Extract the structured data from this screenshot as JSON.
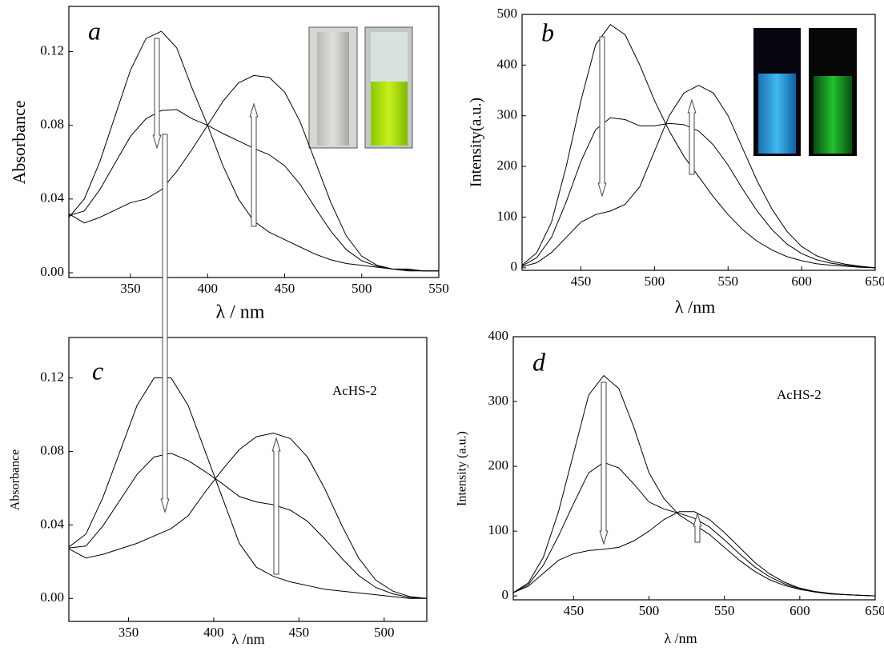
{
  "chart_data": [
    {
      "type": "line",
      "label": "a",
      "xlabel": "λ / nm",
      "ylabel": "Absorbance",
      "x": [
        310,
        320,
        330,
        340,
        350,
        360,
        370,
        380,
        390,
        400,
        410,
        420,
        430,
        440,
        450,
        460,
        470,
        480,
        490,
        500,
        510,
        520,
        530,
        540,
        550
      ],
      "series": [
        {
          "color": "#000000",
          "values": [
            0.03,
            0.04,
            0.06,
            0.085,
            0.11,
            0.127,
            0.131,
            0.122,
            0.1,
            0.08,
            0.058,
            0.04,
            0.028,
            0.022,
            0.018,
            0.014,
            0.01,
            0.007,
            0.005,
            0.004,
            0.003,
            0.002,
            0.002,
            0.001,
            0.001
          ]
        },
        {
          "color": "#000000",
          "values": [
            0.031,
            0.0335,
            0.045,
            0.0595,
            0.074,
            0.0835,
            0.088,
            0.0885,
            0.0835,
            0.08,
            0.0755,
            0.0715,
            0.0675,
            0.064,
            0.058,
            0.048,
            0.035,
            0.0225,
            0.0125,
            0.0065,
            0.0035,
            0.002,
            0.0015,
            0.001,
            0.001
          ]
        },
        {
          "color": "#000000",
          "values": [
            0.032,
            0.027,
            0.03,
            0.034,
            0.038,
            0.04,
            0.045,
            0.055,
            0.067,
            0.08,
            0.093,
            0.103,
            0.107,
            0.106,
            0.098,
            0.082,
            0.06,
            0.038,
            0.02,
            0.009,
            0.004,
            0.002,
            0.001,
            0.001,
            0.001
          ]
        }
      ],
      "xlim": [
        310,
        550
      ],
      "ylim": [
        -0.0026,
        0.1445
      ],
      "xticks": [
        350,
        400,
        450,
        500,
        550
      ],
      "yticks": [
        {
          "value": 0,
          "label": "0.00"
        },
        {
          "value": 0.04,
          "label": "0.04"
        },
        {
          "value": 0.08,
          "label": "0.08"
        },
        {
          "value": 0.12,
          "label": "0.12"
        }
      ]
    },
    {
      "type": "line",
      "label": "b",
      "xlabel": "λ /nm",
      "ylabel": "Intensity(a.u.)",
      "x": [
        410,
        420,
        430,
        440,
        450,
        460,
        470,
        480,
        490,
        500,
        510,
        520,
        530,
        540,
        550,
        560,
        570,
        580,
        590,
        600,
        610,
        620,
        630,
        640,
        650
      ],
      "series": [
        {
          "color": "#000000",
          "values": [
            5,
            30,
            90,
            200,
            330,
            440,
            480,
            460,
            400,
            330,
            270,
            220,
            180,
            140,
            105,
            75,
            52,
            35,
            22,
            14,
            8,
            5,
            3,
            1,
            0
          ]
        },
        {
          "color": "#000000",
          "values": [
            3.5,
            20,
            60,
            130,
            210,
            272.5,
            296,
            292.5,
            280,
            280,
            285,
            282.5,
            270,
            242.5,
            202.5,
            155,
            111,
            75,
            47,
            28,
            16,
            9,
            5,
            2,
            0
          ]
        },
        {
          "color": "#000000",
          "values": [
            2,
            10,
            30,
            60,
            90,
            105,
            112,
            125,
            160,
            230,
            300,
            345,
            360,
            345,
            300,
            235,
            170,
            115,
            72,
            42,
            24,
            13,
            7,
            3,
            0
          ]
        }
      ],
      "xlim": [
        410,
        650
      ],
      "ylim": [
        -5,
        500
      ],
      "xticks": [
        450,
        500,
        550,
        600,
        650
      ],
      "yticks": [
        0,
        100,
        200,
        300,
        400,
        500
      ]
    },
    {
      "type": "line",
      "label": "c",
      "annotation": "AcHS-2",
      "xlabel": "λ /nm",
      "ylabel": "Absorbance",
      "x": [
        315,
        325,
        335,
        345,
        355,
        365,
        375,
        385,
        395,
        405,
        415,
        425,
        435,
        445,
        455,
        465,
        475,
        485,
        495,
        505,
        515,
        525
      ],
      "series": [
        {
          "color": "#000000",
          "values": [
            0.028,
            0.035,
            0.055,
            0.08,
            0.105,
            0.12,
            0.12,
            0.105,
            0.08,
            0.055,
            0.03,
            0.017,
            0.012,
            0.009,
            0.007,
            0.005,
            0.004,
            0.003,
            0.002,
            0.001,
            0,
            0
          ]
        },
        {
          "color": "#000000",
          "values": [
            0.0275,
            0.0285,
            0.0395,
            0.0535,
            0.0675,
            0.077,
            0.079,
            0.075,
            0.069,
            0.0625,
            0.0555,
            0.0525,
            0.051,
            0.048,
            0.042,
            0.0325,
            0.022,
            0.0125,
            0.006,
            0.0025,
            0.0005,
            0
          ]
        },
        {
          "color": "#000000",
          "values": [
            0.027,
            0.022,
            0.024,
            0.027,
            0.03,
            0.034,
            0.038,
            0.045,
            0.058,
            0.07,
            0.081,
            0.088,
            0.09,
            0.087,
            0.077,
            0.06,
            0.04,
            0.022,
            0.01,
            0.004,
            0.001,
            0
          ]
        }
      ],
      "xlim": [
        315,
        525
      ],
      "ylim": [
        -0.0125,
        0.142
      ],
      "xticks": [
        350,
        400,
        450,
        500
      ],
      "yticks": [
        {
          "value": 0,
          "label": "0.00"
        },
        {
          "value": 0.04,
          "label": "0.04"
        },
        {
          "value": 0.08,
          "label": "0.08"
        },
        {
          "value": 0.12,
          "label": "0.12"
        }
      ]
    },
    {
      "type": "line",
      "label": "d",
      "annotation": "AcHS-2",
      "xlabel": "λ /nm",
      "ylabel": "Intensity (a.u.)",
      "x": [
        410,
        420,
        430,
        440,
        450,
        460,
        470,
        480,
        490,
        500,
        510,
        520,
        530,
        540,
        550,
        560,
        570,
        580,
        590,
        600,
        610,
        620,
        630,
        640,
        650
      ],
      "series": [
        {
          "color": "#000000",
          "values": [
            5,
            20,
            60,
            130,
            220,
            310,
            340,
            320,
            260,
            190,
            150,
            125,
            110,
            95,
            75,
            55,
            38,
            25,
            16,
            10,
            6,
            3,
            2,
            1,
            0
          ]
        },
        {
          "color": "#000000",
          "values": [
            5,
            17.5,
            47.5,
            92.5,
            142.5,
            190,
            206,
            197.5,
            172.5,
            145,
            134,
            127.5,
            120,
            106.5,
            86.5,
            65,
            45,
            29.5,
            18.5,
            11,
            6.5,
            3.5,
            2,
            1,
            0
          ]
        },
        {
          "color": "#000000",
          "values": [
            5,
            15,
            35,
            55,
            65,
            70,
            72,
            75,
            85,
            100,
            118,
            130,
            130,
            118,
            98,
            75,
            52,
            34,
            21,
            12,
            7,
            4,
            2,
            1,
            0
          ]
        }
      ],
      "xlim": [
        410,
        650
      ],
      "ylim": [
        -6,
        400
      ],
      "xticks": [
        450,
        500,
        550,
        600,
        650
      ],
      "yticks": [
        0,
        100,
        200,
        300,
        400
      ]
    }
  ]
}
